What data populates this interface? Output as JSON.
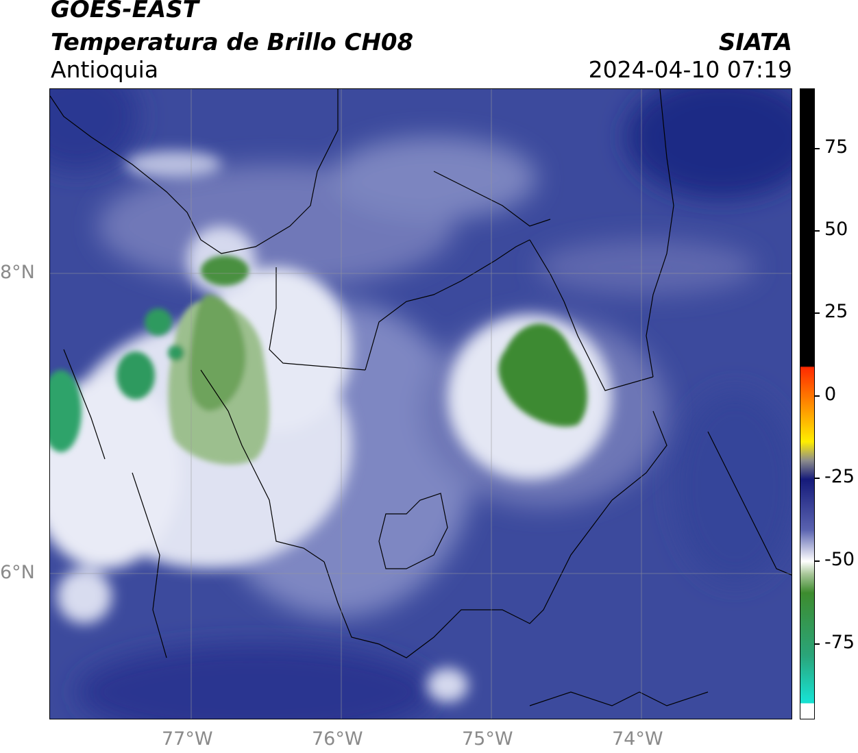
{
  "header": {
    "satellite": "GOES-EAST",
    "product": "Temperatura de Brillo CH08",
    "region": "Antioquia",
    "source": "SIATA",
    "datetime": "2024-04-10 07:19"
  },
  "map": {
    "longitude_ticks": [
      "77°W",
      "76°W",
      "75°W",
      "74°W"
    ],
    "latitude_ticks": [
      "8°N",
      "6°N"
    ],
    "background_color": "#3b4b9c",
    "features": [
      {
        "name": "cold-cloud-cluster-east",
        "color": "#3f8a34"
      },
      {
        "name": "cold-cloud-cluster-west",
        "color": "#5b9a4c"
      },
      {
        "name": "cold-cloud-cluster-coast",
        "color": "#2ea36a"
      }
    ]
  },
  "colorbar": {
    "ticks": [
      "75",
      "50",
      "25",
      "0",
      "-25",
      "-50",
      "-75"
    ],
    "colors": {
      "hot": "#000000",
      "warm_top": "#ff2a00",
      "warm_mid": "#ffee00",
      "neutral": "#8c8c8c",
      "cold_blue": "#151a7a",
      "cold_white": "#ffffff",
      "cold_green": "#3d8c2e",
      "coldest": "#18e0d0"
    }
  }
}
